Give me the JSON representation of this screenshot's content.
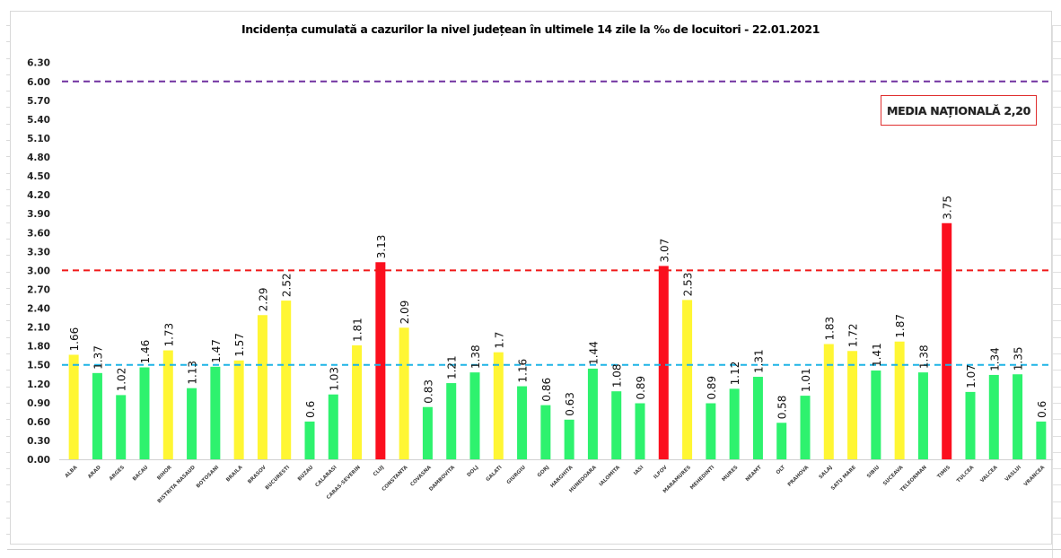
{
  "chart_data": {
    "type": "bar",
    "title": "Incidența cumulată a cazurilor la nivel județean în ultimele 14 zile la ‰ de locuitori - 22.01.2021",
    "xlabel": "",
    "ylabel": "",
    "ylim": [
      0,
      6.3
    ],
    "yticks": [
      "0.00",
      "0.30",
      "0.60",
      "0.90",
      "1.20",
      "1.50",
      "1.80",
      "2.10",
      "2.40",
      "2.70",
      "3.00",
      "3.30",
      "3.60",
      "3.90",
      "4.20",
      "4.50",
      "4.80",
      "5.10",
      "5.40",
      "5.70",
      "6.00",
      "6.30"
    ],
    "grid": false,
    "categories": [
      "ALBA",
      "ARAD",
      "ARGES",
      "BACAU",
      "BIHOR",
      "BISTRITA NASAUD",
      "BOTOSANI",
      "BRAILA",
      "BRASOV",
      "BUCURESTI",
      "BUZAU",
      "CALARASI",
      "CARAS-SEVERIN",
      "CLUJ",
      "CONSTANTA",
      "COVASNA",
      "DAMBOVITA",
      "DOLJ",
      "GALATI",
      "GIURGIU",
      "GORJ",
      "HARGHITA",
      "HUNEDOARA",
      "IALOMITA",
      "IASI",
      "ILFOV",
      "MARAMURES",
      "MEHEDINTI",
      "MURES",
      "NEAMT",
      "OLT",
      "PRAHOVA",
      "SALAJ",
      "SATU MARE",
      "SIBIU",
      "SUCEAVA",
      "TELEORMAN",
      "TIMIS",
      "TULCEA",
      "VALCEA",
      "VASLUI",
      "VRANCEA"
    ],
    "values": [
      1.66,
      1.37,
      1.02,
      1.46,
      1.73,
      1.13,
      1.47,
      1.57,
      2.29,
      2.52,
      0.6,
      1.03,
      1.81,
      3.13,
      2.09,
      0.83,
      1.21,
      1.38,
      1.7,
      1.16,
      0.86,
      0.63,
      1.44,
      1.08,
      0.89,
      3.07,
      2.53,
      0.89,
      1.12,
      1.31,
      0.58,
      1.01,
      1.83,
      1.72,
      1.41,
      1.87,
      1.38,
      3.75,
      1.07,
      1.34,
      1.35,
      0.6
    ],
    "value_labels": [
      "1.66",
      "1.37",
      "1.02",
      "1.46",
      "1.73",
      "1.13",
      "1.47",
      "1.57",
      "2.29",
      "2.52",
      "0.6",
      "1.03",
      "1.81",
      "3.13",
      "2.09",
      "0.83",
      "1.21",
      "1.38",
      "1.7",
      "1.16",
      "0.86",
      "0.63",
      "1.44",
      "1.08",
      "0.89",
      "3.07",
      "2.53",
      "0.89",
      "1.12",
      "1.31",
      "0.58",
      "1.01",
      "1.83",
      "1.72",
      "1.41",
      "1.87",
      "1.38",
      "3.75",
      "1.07",
      "1.34",
      "1.35",
      "0.6"
    ],
    "color_rule": {
      "below_1.5": "#2ef26e",
      "between_1.5_and_3": "#fff633",
      "above_3": "#fb0f1e"
    },
    "green_exceptions_note": "bars under 1.5 are green",
    "reference_lines": [
      {
        "name": "threshold-6",
        "value": 6.0,
        "color": "#7030a0",
        "style": "dashed"
      },
      {
        "name": "threshold-3",
        "value": 3.0,
        "color": "#f01818",
        "style": "dashed"
      },
      {
        "name": "threshold-1.5",
        "value": 1.5,
        "color": "#1eb4e6",
        "style": "dashed"
      }
    ],
    "annotation": "MEDIA NAȚIONALĂ 2,20",
    "annotation_border_color": "#e03030",
    "legend": "none"
  }
}
